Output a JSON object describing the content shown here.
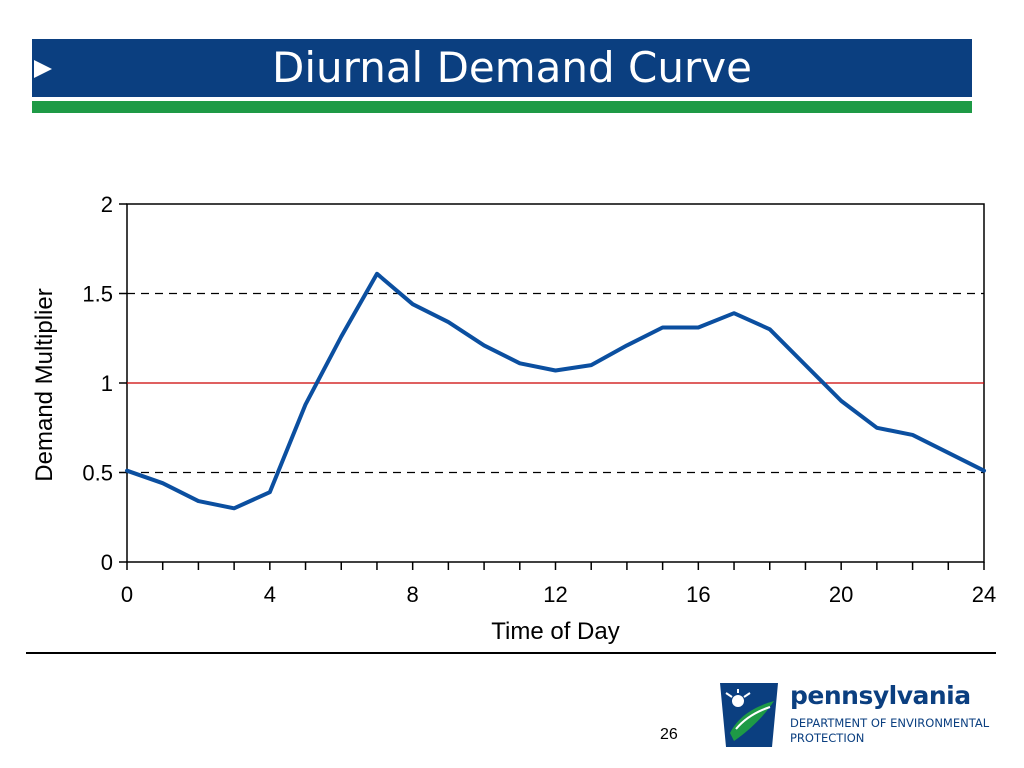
{
  "slide": {
    "title": "Diurnal Demand Curve",
    "page_number": "26"
  },
  "logo": {
    "name": "pennsylvania",
    "department_line1": "DEPARTMENT OF ENVIRONMENTAL",
    "department_line2": "PROTECTION"
  },
  "colors": {
    "title_bar": "#0b3f80",
    "accent_bar": "#1e9a46",
    "series": "#0b4fa0",
    "reference_line": "#cc0000"
  },
  "chart_data": {
    "type": "line",
    "title": "",
    "xlabel": "Time of Day",
    "ylabel": "Demand Multiplier",
    "xlim": [
      0,
      24
    ],
    "ylim": [
      0,
      2
    ],
    "x_ticks": [
      0,
      4,
      8,
      12,
      16,
      20,
      24
    ],
    "x_minor_ticks": [
      1,
      2,
      3,
      5,
      6,
      7,
      9,
      10,
      11,
      13,
      14,
      15,
      17,
      18,
      19,
      21,
      22,
      23
    ],
    "y_ticks": [
      0,
      0.5,
      1,
      1.5,
      2
    ],
    "y_tick_labels": [
      "0",
      "0.5",
      "1",
      "1.5",
      "2"
    ],
    "grid": false,
    "reference_lines": [
      {
        "y": 1.5,
        "style": "dashed",
        "color": "#000000"
      },
      {
        "y": 1.0,
        "style": "solid",
        "color": "#cc0000"
      },
      {
        "y": 0.5,
        "style": "dashed",
        "color": "#000000"
      }
    ],
    "series": [
      {
        "color": "#0b4fa0",
        "x": [
          0,
          1,
          2,
          3,
          4,
          5,
          6,
          7,
          8,
          9,
          10,
          11,
          12,
          13,
          14,
          15,
          16,
          17,
          18,
          19,
          20,
          21,
          22,
          23,
          24
        ],
        "values": [
          0.51,
          0.44,
          0.34,
          0.3,
          0.39,
          0.88,
          1.26,
          1.61,
          1.44,
          1.34,
          1.21,
          1.11,
          1.07,
          1.1,
          1.21,
          1.31,
          1.31,
          1.39,
          1.3,
          1.1,
          0.9,
          0.75,
          0.71,
          0.61,
          0.51
        ]
      }
    ]
  }
}
